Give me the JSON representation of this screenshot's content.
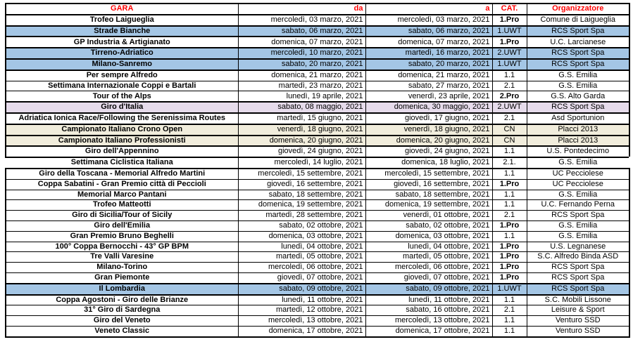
{
  "colors": {
    "header_text": "#FF0000",
    "highlight_blue": "#A4C6E5",
    "highlight_purple": "#E6DBEB",
    "highlight_beige": "#F1EDDC"
  },
  "table": {
    "columns": [
      {
        "key": "gara",
        "label": "GARA"
      },
      {
        "key": "da",
        "label": "da"
      },
      {
        "key": "a",
        "label": "a"
      },
      {
        "key": "cat",
        "label": "CAT."
      },
      {
        "key": "org",
        "label": "Organizzatore"
      }
    ],
    "rows": [
      {
        "gara": "Trofeo Laigueglia",
        "da": "mercoledì, 03 marzo, 2021",
        "a": "mercoledì, 03 marzo, 2021",
        "cat": "1.Pro",
        "org": "Comune di Laigueglia",
        "highlight": "none"
      },
      {
        "gara": "Strade Bianche",
        "da": "sabato, 06 marzo, 2021",
        "a": "sabato, 06 marzo, 2021",
        "cat": "1.UWT",
        "org": "RCS Sport Spa",
        "highlight": "blue"
      },
      {
        "gara": "GP Industria & Artigianato",
        "da": "domenica, 07 marzo, 2021",
        "a": "domenica, 07 marzo, 2021",
        "cat": "1.Pro",
        "org": "U.C. Larcianese",
        "highlight": "none"
      },
      {
        "gara": "Tirreno-Adriatico",
        "da": "mercoledì, 10 marzo, 2021",
        "a": "martedì, 16 marzo, 2021",
        "cat": "2.UWT",
        "org": "RCS Sport Spa",
        "highlight": "blue"
      },
      {
        "gara": "Milano-Sanremo",
        "da": "sabato, 20 marzo, 2021",
        "a": "sabato, 20 marzo, 2021",
        "cat": "1.UWT",
        "org": "RCS Sport Spa",
        "highlight": "blue"
      },
      {
        "gara": "Per sempre Alfredo",
        "da": "domenica, 21 marzo, 2021",
        "a": "domenica, 21 marzo, 2021",
        "cat": "1.1",
        "org": "G.S. Emilia",
        "highlight": "none"
      },
      {
        "gara": "Settimana Internazionale Coppi e Bartali",
        "da": "martedì, 23 marzo, 2021",
        "a": "sabato, 27 marzo, 2021",
        "cat": "2.1",
        "org": "G.S. Emilia",
        "highlight": "none"
      },
      {
        "gara": "Tour of the Alps",
        "da": "lunedì, 19 aprile, 2021",
        "a": "venerdì, 23 aprile, 2021",
        "cat": "2.Pro",
        "org": "G.S. Alto Garda",
        "highlight": "none"
      },
      {
        "gara": "Giro d'Italia",
        "da": "sabato, 08 maggio, 2021",
        "a": "domenica, 30 maggio, 2021",
        "cat": "2.UWT",
        "org": "RCS Sport Spa",
        "highlight": "purple"
      },
      {
        "gara": "Adriatica Ionica Race/Following the Serenissima Routes",
        "da": "martedì, 15 giugno, 2021",
        "a": "giovedì, 17 giugno, 2021",
        "cat": "2.1",
        "org": "Asd Sportunion",
        "highlight": "none"
      },
      {
        "gara": "Campionato Italiano Crono Open",
        "da": "venerdì, 18 giugno, 2021",
        "a": "venerdì, 18 giugno, 2021",
        "cat": "CN",
        "org": "Placci 2013",
        "highlight": "beige"
      },
      {
        "gara": "Campionato Italiano Professionisti",
        "da": "domenica, 20 giugno, 2021",
        "a": "domenica, 20 giugno, 2021",
        "cat": "CN",
        "org": "Placci 2013",
        "highlight": "beige"
      },
      {
        "gara": "Giro dell'Appennino",
        "da": "giovedì, 24 giugno, 2021",
        "a": "giovedì, 24 giugno, 2021",
        "cat": "1.1",
        "org": "U.S. Pontedecimo",
        "highlight": "none"
      },
      {
        "gara": "Settimana Ciclistica Italiana",
        "da": "mercoledì, 14 luglio, 2021",
        "a": "domenica, 18 luglio, 2021",
        "cat": "2.1.",
        "org": "G.S. Emilia",
        "highlight": "none",
        "separated": true
      },
      {
        "gara": "Giro della Toscana - Memorial Alfredo Martini",
        "da": "mercoledì, 15 settembre, 2021",
        "a": "mercoledì, 15 settembre, 2021",
        "cat": "1.1",
        "org": "UC Pecciolese",
        "highlight": "none"
      },
      {
        "gara": "Coppa Sabatini - Gran Premio città di Peccioli",
        "da": "giovedì, 16 settembre, 2021",
        "a": "giovedì, 16 settembre, 2021",
        "cat": "1.Pro",
        "org": "UC Pecciolese",
        "highlight": "none"
      },
      {
        "gara": "Memorial Marco Pantani",
        "da": "sabato, 18 settembre, 2021",
        "a": "sabato, 18 settembre, 2021",
        "cat": "1.1",
        "org": "G.S. Emilia",
        "highlight": "none"
      },
      {
        "gara": "Trofeo Matteotti",
        "da": "domenica, 19 settembre, 2021",
        "a": "domenica, 19 settembre, 2021",
        "cat": "1.1",
        "org": "U.C. Fernando Perna",
        "highlight": "none"
      },
      {
        "gara": "Giro di Sicilia/Tour of Sicily",
        "da": "martedì, 28 settembre, 2021",
        "a": "venerdì, 01 ottobre, 2021",
        "cat": "2.1",
        "org": "RCS Sport Spa",
        "highlight": "none"
      },
      {
        "gara": "Giro dell'Emilia",
        "da": "sabato, 02 ottobre, 2021",
        "a": "sabato, 02 ottobre, 2021",
        "cat": "1.Pro",
        "org": "G.S. Emilia",
        "highlight": "none"
      },
      {
        "gara": "Gran Premio Bruno Beghelli",
        "da": "domenica, 03 ottobre, 2021",
        "a": "domenica, 03 ottobre, 2021",
        "cat": "1.1",
        "org": "G.S. Emilia",
        "highlight": "none"
      },
      {
        "gara": "100° Coppa Bernocchi - 43° GP BPM",
        "da": "lunedì, 04 ottobre, 2021",
        "a": "lunedì, 04 ottobre, 2021",
        "cat": "1.Pro",
        "org": "U.S. Legnanese",
        "highlight": "none"
      },
      {
        "gara": "Tre Valli Varesine",
        "da": "martedì, 05 ottobre, 2021",
        "a": "martedì, 05 ottobre, 2021",
        "cat": "1.Pro",
        "org": "S.C. Alfredo Binda ASD",
        "highlight": "none"
      },
      {
        "gara": "Milano-Torino",
        "da": "mercoledì, 06 ottobre, 2021",
        "a": "mercoledì, 06 ottobre, 2021",
        "cat": "1.Pro",
        "org": "RCS Sport Spa",
        "highlight": "none"
      },
      {
        "gara": "Gran Piemonte",
        "da": "giovedì, 07 ottobre, 2021",
        "a": "giovedì, 07 ottobre, 2021",
        "cat": "1.Pro",
        "org": "RCS Sport Spa",
        "highlight": "none"
      },
      {
        "gara": "Il Lombardia",
        "da": "sabato, 09 ottobre, 2021",
        "a": "sabato, 09 ottobre, 2021",
        "cat": "1.UWT",
        "org": "RCS Sport Spa",
        "highlight": "blue"
      },
      {
        "gara": "Coppa Agostoni - Giro delle Brianze",
        "da": "lunedì, 11 ottobre, 2021",
        "a": "lunedì, 11 ottobre, 2021",
        "cat": "1.1",
        "org": "S.C. Mobili Lissone",
        "highlight": "none"
      },
      {
        "gara": "31° Giro di Sardegna",
        "da": "martedì, 12 ottobre, 2021",
        "a": "sabato, 16 ottobre, 2021",
        "cat": "2.1",
        "org": "Leisure & Sport",
        "highlight": "none"
      },
      {
        "gara": "Giro del Veneto",
        "da": "mercoledì, 13 ottobre, 2021",
        "a": "mercoledì, 13 ottobre, 2021",
        "cat": "1.1",
        "org": "Venturo SSD",
        "highlight": "none"
      },
      {
        "gara": "Veneto Classic",
        "da": "domenica, 17 ottobre, 2021",
        "a": "domenica, 17 ottobre, 2021",
        "cat": "1.1",
        "org": "Venturo SSD",
        "highlight": "none"
      }
    ]
  }
}
